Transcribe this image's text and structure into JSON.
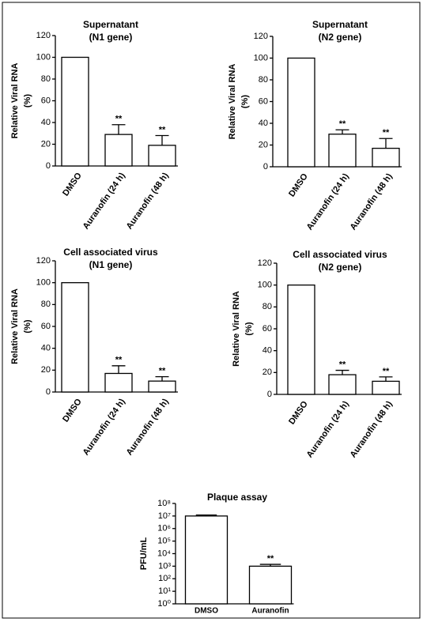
{
  "chart_data": [
    {
      "type": "bar",
      "title": [
        "Supernatant",
        "(N1 gene)"
      ],
      "ylabel": [
        "Relative Viral RNA",
        "(%)"
      ],
      "categories": [
        "DMSO",
        "Auranofin (24 h)",
        "Auranofin (48 h)"
      ],
      "values": [
        100,
        29,
        19
      ],
      "errors": [
        null,
        9,
        9
      ],
      "annotations": [
        null,
        "**",
        "**"
      ],
      "ylim": [
        0,
        120
      ],
      "yticks": [
        0,
        20,
        40,
        60,
        80,
        100,
        120
      ],
      "color": "#ffffff"
    },
    {
      "type": "bar",
      "title": [
        "Supernatant",
        "(N2 gene)"
      ],
      "ylabel": [
        "Relative Viral RNA",
        "(%)"
      ],
      "categories": [
        "DMSO",
        "Auranofin (24 h)",
        "Auranofin (48 h)"
      ],
      "values": [
        100,
        30,
        17
      ],
      "errors": [
        null,
        4,
        9
      ],
      "annotations": [
        null,
        "**",
        "**"
      ],
      "ylim": [
        0,
        120
      ],
      "yticks": [
        0,
        20,
        40,
        60,
        80,
        100,
        120
      ],
      "color": "#ffffff"
    },
    {
      "type": "bar",
      "title": [
        "Cell associated virus",
        "(N1 gene)"
      ],
      "ylabel": [
        "Relative Viral RNA",
        "(%)"
      ],
      "categories": [
        "DMSO",
        "Auranofin (24 h)",
        "Auranofin (48 h)"
      ],
      "values": [
        100,
        17,
        10
      ],
      "errors": [
        null,
        7,
        4
      ],
      "annotations": [
        null,
        "**",
        "**"
      ],
      "ylim": [
        0,
        120
      ],
      "yticks": [
        0,
        20,
        40,
        60,
        80,
        100,
        120
      ],
      "color": "#ffffff"
    },
    {
      "type": "bar",
      "title": [
        "Cell associated virus",
        "(N2 gene)"
      ],
      "ylabel": [
        "Relative Viral RNA",
        "(%)"
      ],
      "categories": [
        "DMSO",
        "Auranofin (24 h)",
        "Auranofin (48 h)"
      ],
      "values": [
        100,
        18,
        12
      ],
      "errors": [
        null,
        4,
        4
      ],
      "annotations": [
        null,
        "**",
        "**"
      ],
      "ylim": [
        0,
        120
      ],
      "yticks": [
        0,
        20,
        40,
        60,
        80,
        100,
        120
      ],
      "color": "#ffffff"
    },
    {
      "type": "bar",
      "title": [
        "Plaque assay"
      ],
      "ylabel": [
        "PFU/mL"
      ],
      "log_scale": true,
      "categories": [
        "DMSO",
        "Auranofin"
      ],
      "values": [
        10000000,
        1000
      ],
      "errors": [
        2000000,
        400
      ],
      "annotations": [
        null,
        "**"
      ],
      "ylim": [
        1,
        100000000
      ],
      "yticks": [
        {
          "value": 1,
          "label": "10⁰"
        },
        {
          "value": 10,
          "label": "10¹"
        },
        {
          "value": 100,
          "label": "10²"
        },
        {
          "value": 1000,
          "label": "10³"
        },
        {
          "value": 10000,
          "label": "10⁴"
        },
        {
          "value": 100000,
          "label": "10⁵"
        },
        {
          "value": 1000000,
          "label": "10⁶"
        },
        {
          "value": 10000000,
          "label": "10⁷"
        },
        {
          "value": 100000000,
          "label": "10⁸"
        }
      ],
      "color": "#ffffff"
    }
  ]
}
